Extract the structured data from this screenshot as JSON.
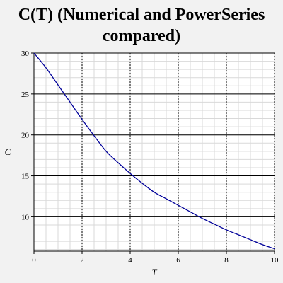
{
  "chart_data": {
    "type": "line",
    "title_lines": [
      "C(T) (Numerical and PowerSeries",
      "compared)"
    ],
    "xlabel": "T",
    "ylabel": "C",
    "xlim": [
      0,
      10
    ],
    "ylim": [
      5.8,
      30
    ],
    "x_ticks": [
      0,
      2,
      4,
      6,
      8,
      10
    ],
    "y_ticks": [
      10,
      15,
      20,
      25,
      30
    ],
    "grid": true,
    "series": [
      {
        "color": "#000099",
        "x": [
          0,
          0.5,
          1,
          1.5,
          2,
          2.5,
          3,
          3.5,
          4,
          4.5,
          5,
          5.5,
          6,
          6.5,
          7,
          7.5,
          8,
          8.5,
          9,
          9.5,
          10
        ],
        "y": [
          30,
          28.2,
          26.1,
          24.0,
          21.9,
          19.9,
          18.0,
          16.6,
          15.3,
          14.1,
          13.0,
          12.2,
          11.4,
          10.6,
          9.8,
          9.1,
          8.4,
          7.8,
          7.2,
          6.6,
          6.1
        ]
      }
    ]
  }
}
